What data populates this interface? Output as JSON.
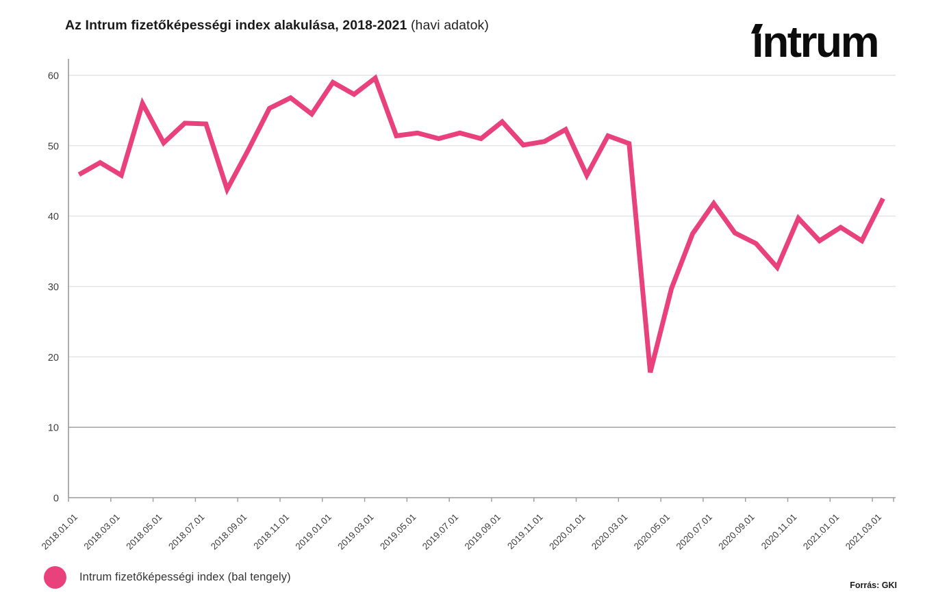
{
  "title": {
    "main": "Az Intrum fizetőképességi index alakulása, 2018-2021",
    "suffix": " (havi adatok)"
  },
  "logo": {
    "text": "intrum"
  },
  "legend": {
    "label": "Intrum fizetőképességi index (bal tengely)",
    "marker_color": "#e8417c"
  },
  "source": "Forrás: GKI",
  "chart_data": {
    "type": "line",
    "title": "Az Intrum fizetőképességi index alakulása, 2018-2021 (havi adatok)",
    "series": [
      {
        "name": "Intrum fizetőképességi index (bal tengely)",
        "color": "#e8417c",
        "values": [
          45.9,
          47.6,
          45.8,
          56.0,
          50.4,
          53.2,
          53.1,
          43.8,
          49.4,
          55.3,
          56.8,
          54.5,
          59.0,
          57.3,
          59.6,
          51.4,
          51.8,
          51.0,
          51.8,
          51.0,
          53.4,
          50.1,
          50.6,
          52.3,
          45.8,
          51.4,
          50.3,
          17.8,
          29.7,
          37.5,
          41.8,
          37.6,
          36.1,
          32.7,
          39.7,
          36.5,
          38.4,
          36.5,
          42.5
        ]
      }
    ],
    "x": [
      "2018.01",
      "2018.02",
      "2018.03",
      "2018.04",
      "2018.05",
      "2018.06",
      "2018.07",
      "2018.08",
      "2018.09",
      "2018.10",
      "2018.11",
      "2018.12",
      "2019.01",
      "2019.02",
      "2019.03",
      "2019.04",
      "2019.05",
      "2019.06",
      "2019.07",
      "2019.08",
      "2019.09",
      "2019.10",
      "2019.11",
      "2019.12",
      "2020.01",
      "2020.02",
      "2020.03",
      "2020.04",
      "2020.05",
      "2020.06",
      "2020.07",
      "2020.08",
      "2020.09",
      "2020.10",
      "2020.11",
      "2020.12",
      "2021.01",
      "2021.02",
      "2021.03"
    ],
    "x_tick_labels": [
      "2018.01.01",
      "2018.03.01",
      "2018.05.01",
      "2018.07.01",
      "2018.09.01",
      "2018.11.01",
      "2019.01.01",
      "2019.03.01",
      "2019.05.01",
      "2019.07.01",
      "2019.09.01",
      "2019.11.01",
      "2020.01.01",
      "2020.03.01",
      "2020.05.01",
      "2020.07.01",
      "2020.09.01",
      "2020.11.01",
      "2021.01.01",
      "2021.03.01"
    ],
    "y_ticks": [
      0,
      10,
      20,
      30,
      40,
      50,
      60
    ],
    "ylim": [
      0,
      62
    ],
    "grid": true,
    "legend_position": "bottom-left",
    "line_color": "#e8417c",
    "grid_color": "#e4e4e4",
    "grid_color_dark": "#a9a9a9",
    "axis_color": "#9a9a9a"
  }
}
